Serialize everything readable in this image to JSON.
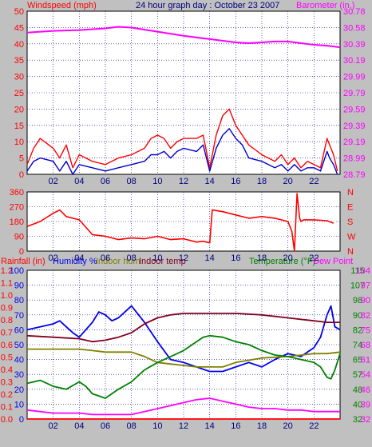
{
  "page": {
    "title": "24 hour graph day : October 23 2007",
    "background": "#c0c0c0"
  },
  "panels": {
    "top": {
      "left_label": "Windspeed (mph)",
      "right_label": "Barometer (in.)"
    },
    "mid": {
      "right_compass": [
        "N",
        "W",
        "S",
        "E",
        "N"
      ]
    },
    "bottom": {
      "labels": {
        "rainfall": "Rainfall (in)",
        "humidity": "Humidity %",
        "indoor_hum": "Indoor hum",
        "indoor_temp": "Indoor temp",
        "temperature": "Temperature (°F)",
        "dew_point": "Dew Point"
      }
    }
  },
  "colors": {
    "wind_gust": "#ff0000",
    "wind_avg": "#0000cc",
    "barometer": "#ff00ff",
    "direction": "#ff0000",
    "rain": "#ff0000",
    "humidity": "#0000ee",
    "indoor_hum": "#808000",
    "indoor_temp": "#800020",
    "temperature": "#008000",
    "dew_point": "#ff00ff",
    "grid": "#000080",
    "plot_bg": "#ffffff"
  },
  "chart_data": [
    {
      "type": "line",
      "panel": "wind_barometer",
      "x_ticks": [
        "02",
        "04",
        "06",
        "08",
        "10",
        "12",
        "14",
        "16",
        "18",
        "20",
        "22"
      ],
      "xlim": [
        0,
        24
      ],
      "ylabel": "Windspeed (mph)",
      "ylim": [
        0,
        50
      ],
      "yticks": [
        "0",
        "5",
        "10",
        "15",
        "20",
        "25",
        "30",
        "35",
        "40",
        "45",
        "50"
      ],
      "y2label": "Barometer (in.)",
      "y2lim": [
        28.79,
        30.78
      ],
      "y2ticks": [
        "28.79",
        "28.99",
        "29.19",
        "29.39",
        "29.59",
        "29.79",
        "29.99",
        "30.19",
        "30.39",
        "30.58",
        "30.78"
      ],
      "series": [
        {
          "name": "gust",
          "axis": "left",
          "x": [
            0,
            0.5,
            1,
            2,
            2.5,
            3,
            3.5,
            4,
            5,
            6,
            7,
            8,
            9,
            9.5,
            10,
            10.5,
            11,
            11.5,
            12,
            13,
            13.5,
            14,
            14.5,
            15,
            15.5,
            16,
            16.5,
            17,
            18,
            19,
            19.5,
            20,
            20.5,
            21,
            21.5,
            22,
            22.5,
            23,
            23.2,
            23.5,
            23.8
          ],
          "y": [
            3,
            8,
            11,
            8,
            5,
            9,
            2,
            6,
            4,
            3,
            5,
            6,
            8,
            11,
            12,
            11,
            8,
            10,
            11,
            11,
            12,
            2,
            12,
            18,
            20,
            15,
            12,
            9,
            6,
            4,
            6,
            3,
            5,
            2,
            4,
            3,
            2,
            11,
            9,
            6,
            1
          ]
        },
        {
          "name": "average",
          "axis": "left",
          "x": [
            0,
            0.5,
            1,
            2,
            2.5,
            3,
            3.5,
            4,
            5,
            6,
            7,
            8,
            9,
            9.5,
            10,
            10.5,
            11,
            11.5,
            12,
            13,
            13.5,
            14,
            14.5,
            15,
            15.5,
            16,
            16.5,
            17,
            18,
            19,
            19.5,
            20,
            20.5,
            21,
            21.5,
            22,
            22.5,
            23,
            23.2,
            23.5,
            23.8
          ],
          "y": [
            1,
            4,
            5,
            4,
            1,
            4,
            0,
            3,
            2,
            1,
            2,
            3,
            4,
            6,
            6,
            7,
            5,
            7,
            8,
            7,
            9,
            1,
            8,
            12,
            14,
            11,
            9,
            5,
            4,
            2,
            3,
            1,
            3,
            1,
            2,
            2,
            1,
            7,
            5,
            3,
            0
          ]
        },
        {
          "name": "barometer",
          "axis": "right",
          "x": [
            0,
            2,
            4,
            6,
            7,
            8,
            10,
            12,
            14,
            16,
            17,
            18,
            19,
            20,
            21,
            22,
            23,
            24
          ],
          "y": [
            30.52,
            30.54,
            30.55,
            30.57,
            30.59,
            30.58,
            30.53,
            30.48,
            30.44,
            30.4,
            30.39,
            30.4,
            30.41,
            30.41,
            30.39,
            30.37,
            30.36,
            30.34
          ]
        }
      ]
    },
    {
      "type": "line",
      "panel": "wind_direction",
      "x_ticks": [
        "02",
        "04",
        "06",
        "08",
        "10",
        "12",
        "14",
        "16",
        "18",
        "20",
        "22"
      ],
      "xlim": [
        0,
        24
      ],
      "ylim": [
        0,
        360
      ],
      "yticks": [
        "0",
        "90",
        "180",
        "270",
        "360"
      ],
      "series": [
        {
          "name": "direction",
          "x": [
            0,
            1,
            2,
            2.5,
            3,
            4,
            5,
            6,
            7,
            8,
            9,
            10,
            11,
            12,
            13,
            13.5,
            14,
            14.2,
            15,
            16,
            17,
            18,
            19,
            20,
            20.3,
            20.5,
            20.7,
            20.9,
            21,
            21.2,
            22,
            23,
            23.5
          ],
          "y": [
            150,
            180,
            230,
            250,
            210,
            190,
            100,
            90,
            70,
            80,
            75,
            90,
            70,
            75,
            55,
            60,
            50,
            250,
            240,
            220,
            200,
            210,
            200,
            180,
            120,
            0,
            350,
            200,
            180,
            190,
            190,
            185,
            170
          ]
        }
      ]
    },
    {
      "type": "line",
      "panel": "humidity_temperature",
      "x_ticks": [
        "02",
        "04",
        "06",
        "08",
        "10",
        "12",
        "14",
        "16",
        "18",
        "20",
        "22"
      ],
      "xlim": [
        0,
        24
      ],
      "rain_ticks": [
        "0.0",
        "0.1",
        "0.2",
        "0.3",
        "0.4",
        "0.5",
        "0.6",
        "0.7",
        "0.8",
        "0.9",
        "1.0",
        "1.1",
        "1.2"
      ],
      "humidity_ticks": [
        "0",
        "10",
        "20",
        "30",
        "40",
        "50",
        "60",
        "70",
        "80",
        "90",
        "100"
      ],
      "temp_ticks": [
        "32",
        "40",
        "48",
        "57",
        "65",
        "74",
        "82",
        "90",
        "98",
        "107",
        "115"
      ],
      "dew_ticks": [
        "32",
        "39",
        "46",
        "54",
        "61",
        "68",
        "75",
        "82",
        "90",
        "97",
        "104"
      ],
      "ylim_humidity": [
        0,
        100
      ],
      "series": [
        {
          "name": "Humidity %",
          "x": [
            0,
            1,
            2,
            2.5,
            3,
            3.5,
            4,
            5,
            5.5,
            6,
            6.5,
            7,
            7.5,
            8,
            9,
            10,
            11,
            12,
            13,
            14,
            15,
            16,
            17,
            18,
            19,
            20,
            21,
            22,
            22.5,
            23,
            23.3,
            23.6,
            24
          ],
          "y": [
            60,
            62,
            64,
            66,
            62,
            58,
            55,
            65,
            72,
            70,
            66,
            68,
            72,
            76,
            65,
            52,
            40,
            38,
            35,
            32,
            32,
            35,
            38,
            35,
            40,
            44,
            42,
            48,
            55,
            70,
            76,
            62,
            60
          ]
        },
        {
          "name": "Indoor hum",
          "x": [
            0,
            2,
            4,
            5,
            6,
            7,
            8,
            9,
            10,
            11,
            12,
            13,
            14,
            15,
            16,
            18,
            20,
            22,
            23,
            24
          ],
          "y": [
            47,
            47,
            47,
            46,
            45,
            45,
            45,
            42,
            38,
            37,
            36,
            35,
            35,
            35,
            38,
            41,
            42,
            44,
            44,
            45
          ]
        },
        {
          "name": "Indoor temp",
          "x": [
            0,
            2,
            4,
            5,
            6,
            7,
            8,
            9,
            10,
            11,
            12,
            13,
            14,
            15,
            16,
            18,
            20,
            22,
            23,
            24
          ],
          "y": [
            56,
            55,
            54,
            52,
            53,
            55,
            58,
            64,
            68,
            70,
            71,
            71,
            71,
            71,
            71,
            70,
            68,
            66,
            65,
            65
          ]
        },
        {
          "name": "Temperature (°F)",
          "x": [
            0,
            1,
            2,
            3,
            4,
            4.5,
            5,
            6,
            7,
            8,
            9,
            10,
            11,
            12,
            13,
            13.5,
            14,
            15,
            16,
            17,
            18,
            19,
            20,
            21,
            22,
            22.5,
            23,
            23.3,
            23.6,
            24
          ],
          "y": [
            24,
            26,
            22,
            20,
            25,
            22,
            17,
            14,
            20,
            25,
            33,
            38,
            42,
            46,
            52,
            55,
            56,
            55,
            52,
            50,
            46,
            43,
            42,
            40,
            38,
            35,
            28,
            27,
            33,
            44
          ]
        },
        {
          "name": "Dew Point",
          "x": [
            0,
            1,
            2,
            3,
            4,
            5,
            6,
            7,
            8,
            9,
            10,
            11,
            12,
            13,
            14,
            15,
            16,
            17,
            18,
            19,
            20,
            21,
            22,
            23,
            24
          ],
          "y": [
            6,
            5,
            4,
            4,
            4,
            3,
            3,
            3,
            3,
            5,
            7,
            9,
            11,
            13,
            14,
            12,
            10,
            8,
            7,
            7,
            6,
            6,
            5,
            5,
            5
          ]
        },
        {
          "name": "Rainfall",
          "x": [
            0,
            24
          ],
          "y": [
            0,
            0
          ]
        }
      ]
    }
  ]
}
